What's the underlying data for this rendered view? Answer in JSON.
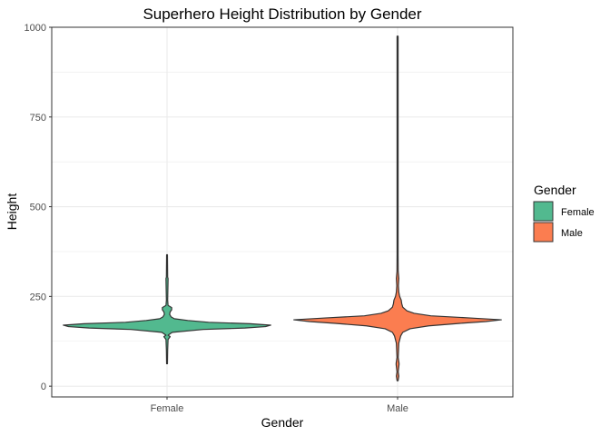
{
  "chart_data": {
    "type": "violin",
    "title": "Superhero Height Distribution by Gender",
    "xlabel": "Gender",
    "ylabel": "Height",
    "categories": [
      "Female",
      "Male"
    ],
    "ylim": [
      -30,
      1000
    ],
    "yticks": [
      0,
      250,
      500,
      750,
      1000
    ],
    "grid": true,
    "legend": {
      "title": "Gender",
      "position": "right",
      "entries": [
        {
          "label": "Female",
          "color": "#52b98f"
        },
        {
          "label": "Male",
          "color": "#fb7d50"
        }
      ]
    },
    "series": [
      {
        "name": "Female",
        "color": "#52b98f",
        "min": 62.5,
        "max": 366,
        "profile": [
          [
            62.5,
            0.004
          ],
          [
            100,
            0.006
          ],
          [
            130,
            0.01
          ],
          [
            138,
            0.03
          ],
          [
            142,
            0.01
          ],
          [
            150,
            0.05
          ],
          [
            158,
            0.35
          ],
          [
            162,
            0.75
          ],
          [
            166,
            0.95
          ],
          [
            170,
            1.0
          ],
          [
            174,
            0.8
          ],
          [
            178,
            0.4
          ],
          [
            183,
            0.2
          ],
          [
            188,
            0.07
          ],
          [
            193,
            0.04
          ],
          [
            200,
            0.025
          ],
          [
            207,
            0.03
          ],
          [
            213,
            0.045
          ],
          [
            219,
            0.045
          ],
          [
            225,
            0.01
          ],
          [
            240,
            0.006
          ],
          [
            296,
            0.01
          ],
          [
            300,
            0.01
          ],
          [
            304,
            0.006
          ],
          [
            366,
            0.004
          ]
        ]
      },
      {
        "name": "Male",
        "color": "#fb7d50",
        "min": 15.2,
        "max": 975,
        "profile": [
          [
            15.2,
            0.005
          ],
          [
            28,
            0.012
          ],
          [
            40,
            0.006
          ],
          [
            60,
            0.014
          ],
          [
            64,
            0.014
          ],
          [
            80,
            0.006
          ],
          [
            120,
            0.012
          ],
          [
            140,
            0.03
          ],
          [
            150,
            0.05
          ],
          [
            160,
            0.12
          ],
          [
            168,
            0.3
          ],
          [
            175,
            0.6
          ],
          [
            180,
            0.85
          ],
          [
            185,
            1.0
          ],
          [
            190,
            0.7
          ],
          [
            196,
            0.32
          ],
          [
            203,
            0.16
          ],
          [
            210,
            0.09
          ],
          [
            220,
            0.05
          ],
          [
            230,
            0.04
          ],
          [
            240,
            0.035
          ],
          [
            250,
            0.02
          ],
          [
            262,
            0.012
          ],
          [
            280,
            0.008
          ],
          [
            300,
            0.012
          ],
          [
            320,
            0.006
          ],
          [
            366,
            0.005
          ],
          [
            700,
            0.005
          ],
          [
            876,
            0.005
          ],
          [
            975,
            0.005
          ]
        ]
      }
    ]
  }
}
